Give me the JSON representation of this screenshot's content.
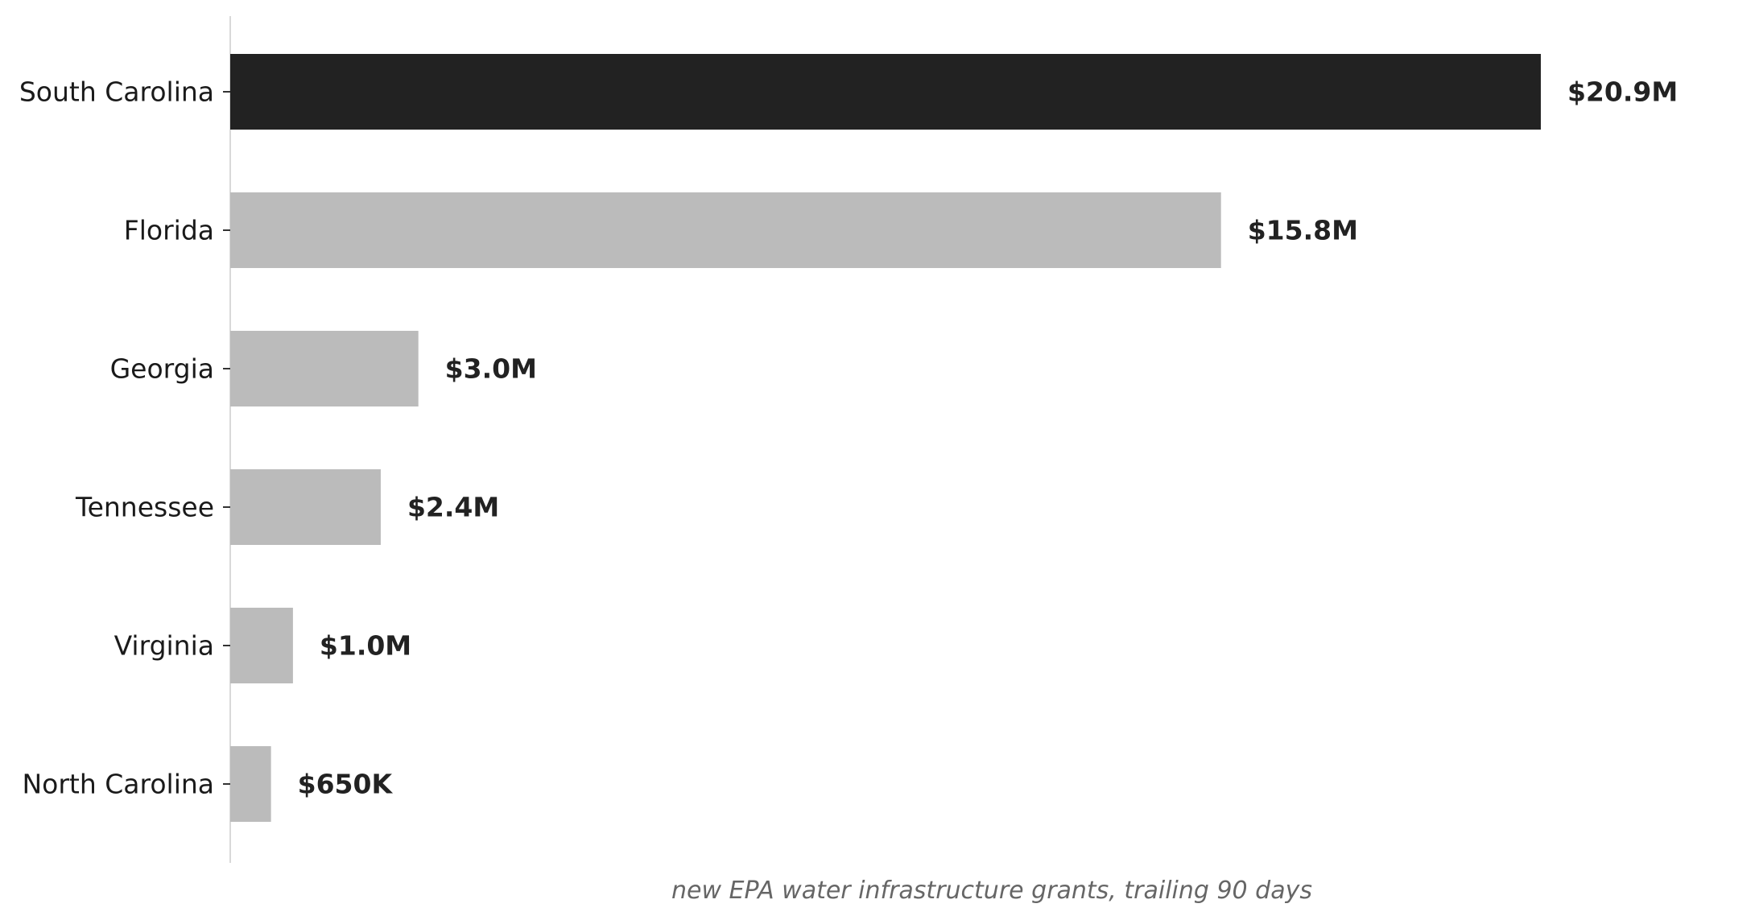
{
  "chart_data": {
    "type": "bar",
    "orientation": "horizontal",
    "categories": [
      "South Carolina",
      "Florida",
      "Georgia",
      "Tennessee",
      "Virginia",
      "North Carolina"
    ],
    "values": [
      20.9,
      15.8,
      3.0,
      2.4,
      1.0,
      0.65
    ],
    "value_unit": "$M",
    "value_labels": [
      "$20.9M",
      "$15.8M",
      "$3.0M",
      "$2.4M",
      "$1.0M",
      "$650K"
    ],
    "highlight_index": 0,
    "xlabel": "new EPA water infrastructure grants, trailing 90 days",
    "xlim": [
      0,
      24.2
    ],
    "grid": false,
    "colors": {
      "highlight": "#222222",
      "default": "#bbbbbb",
      "axis": "#d9d9d9",
      "tick": "#333333"
    }
  }
}
